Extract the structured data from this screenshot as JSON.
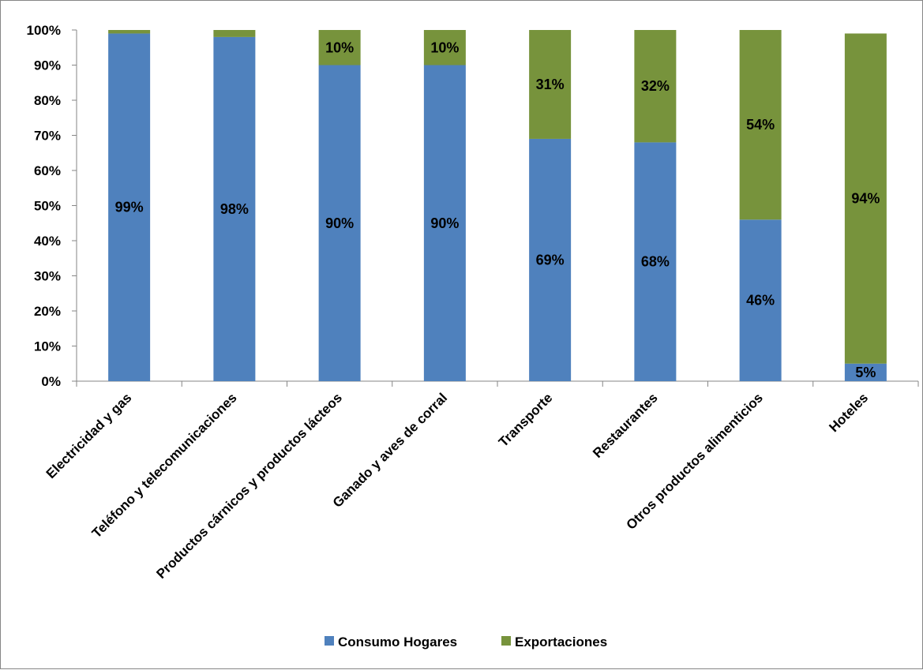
{
  "chart_data": {
    "type": "bar",
    "stacked": true,
    "categories": [
      "Electricidad y gas",
      "Teléfono y telecomunicaciones",
      "Productos cárnicos y productos lácteos",
      "Ganado y aves de corral",
      "Transporte",
      "Restaurantes",
      "Otros productos alimenticios",
      "Hoteles"
    ],
    "series": [
      {
        "name": "Consumo Hogares",
        "color": "#4F81BD",
        "values": [
          99,
          98,
          90,
          90,
          69,
          68,
          46,
          5
        ],
        "labels": [
          "99%",
          "98%",
          "90%",
          "90%",
          "69%",
          "68%",
          "46%",
          "5%"
        ]
      },
      {
        "name": "Exportaciones",
        "color": "#77933C",
        "values": [
          1,
          2,
          10,
          10,
          31,
          32,
          54,
          94
        ],
        "labels": [
          "",
          "",
          "10%",
          "10%",
          "31%",
          "32%",
          "54%",
          "94%"
        ]
      }
    ],
    "yticks": [
      "0%",
      "10%",
      "20%",
      "30%",
      "40%",
      "50%",
      "60%",
      "70%",
      "80%",
      "90%",
      "100%"
    ],
    "ylim": [
      0,
      100
    ],
    "grid": false,
    "legend_position": "bottom",
    "title": "",
    "xlabel": "",
    "ylabel": ""
  }
}
